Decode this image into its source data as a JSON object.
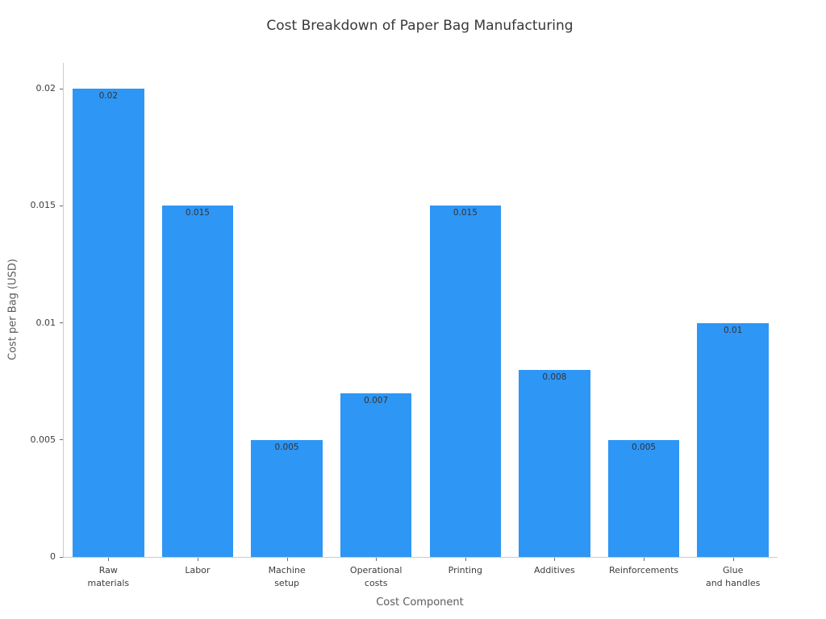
{
  "chart_data": {
    "type": "bar",
    "title": "Cost Breakdown of Paper Bag Manufacturing",
    "xlabel": "Cost Component",
    "ylabel": "Cost per Bag (USD)",
    "categories": [
      "Raw\nmaterials",
      "Labor",
      "Machine\nsetup",
      "Operational\ncosts",
      "Printing",
      "Additives",
      "Reinforcements",
      "Glue\nand handles"
    ],
    "values": [
      0.02,
      0.015,
      0.005,
      0.007,
      0.015,
      0.008,
      0.005,
      0.01
    ],
    "bar_labels": [
      "0.02",
      "0.015",
      "0.005",
      "0.007",
      "0.015",
      "0.008",
      "0.005",
      "0.01"
    ],
    "yticks": {
      "values": [
        0,
        0.005,
        0.01,
        0.015,
        0.02
      ],
      "labels": [
        "0",
        "0.005",
        "0.01",
        "0.015",
        "0.02"
      ]
    },
    "ylim": [
      0,
      0.0211
    ],
    "grid": false,
    "legend": false,
    "bar_color": "#2E96F5",
    "bar_width_fraction": 0.8
  },
  "colors": {
    "bar": "#2E96F5",
    "title": "#383838",
    "tick_labels": "#3d3d3d",
    "axis_titles": "#5c5c5c",
    "spines": "#cbcbcb",
    "tick_marks": "#6e6e6e",
    "bar_value_labels": "#333333"
  }
}
